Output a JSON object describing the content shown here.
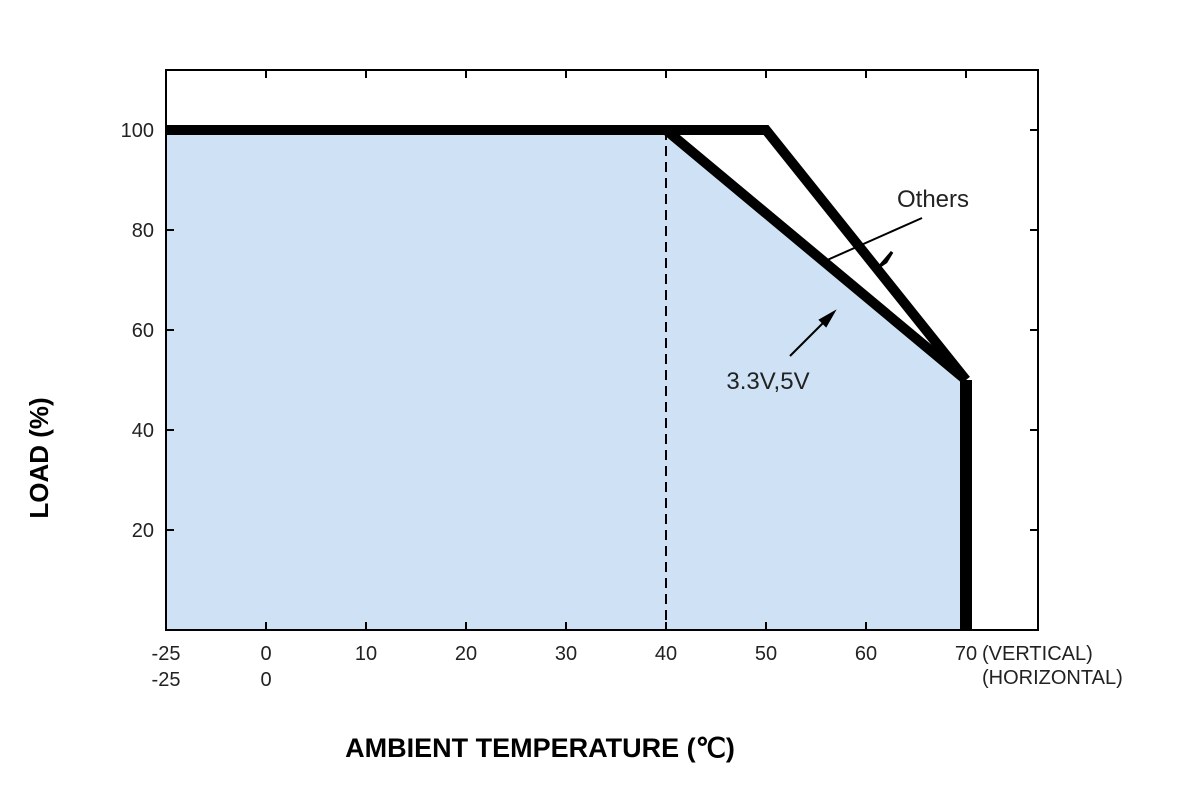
{
  "chart_data": {
    "type": "line",
    "xlabel": "AMBIENT TEMPERATURE (℃)",
    "ylabel": "LOAD (%)",
    "x_ticks_vertical": [
      "-25",
      "0",
      "10",
      "20",
      "30",
      "40",
      "50",
      "60",
      "70"
    ],
    "x_ticks_horizontal": [
      "-25",
      "0"
    ],
    "x_tick_suffix_vertical": "(VERTICAL)",
    "x_tick_suffix_horizontal": "(HORIZONTAL)",
    "y_ticks": [
      "20",
      "40",
      "60",
      "80",
      "100"
    ],
    "xlim": [
      -25,
      77
    ],
    "ylim": [
      0,
      112
    ],
    "grid": false,
    "colors": {
      "fill": "#cfe2f5",
      "line": "#000000"
    },
    "series": [
      {
        "name": "Others",
        "points": [
          [
            -25,
            100
          ],
          [
            50,
            100
          ],
          [
            70,
            50
          ],
          [
            70,
            0
          ]
        ]
      },
      {
        "name": "3.3V,5V",
        "points": [
          [
            -25,
            100
          ],
          [
            40,
            100
          ],
          [
            70,
            50
          ],
          [
            70,
            0
          ]
        ]
      }
    ],
    "reference_lines": [
      {
        "x": 40,
        "style": "dashed"
      }
    ],
    "annotations": [
      {
        "text": "Others",
        "arrow_to": [
          55.5,
          73
        ]
      },
      {
        "text": "3.3V,5V",
        "arrow_to": [
          57,
          64
        ]
      }
    ]
  }
}
